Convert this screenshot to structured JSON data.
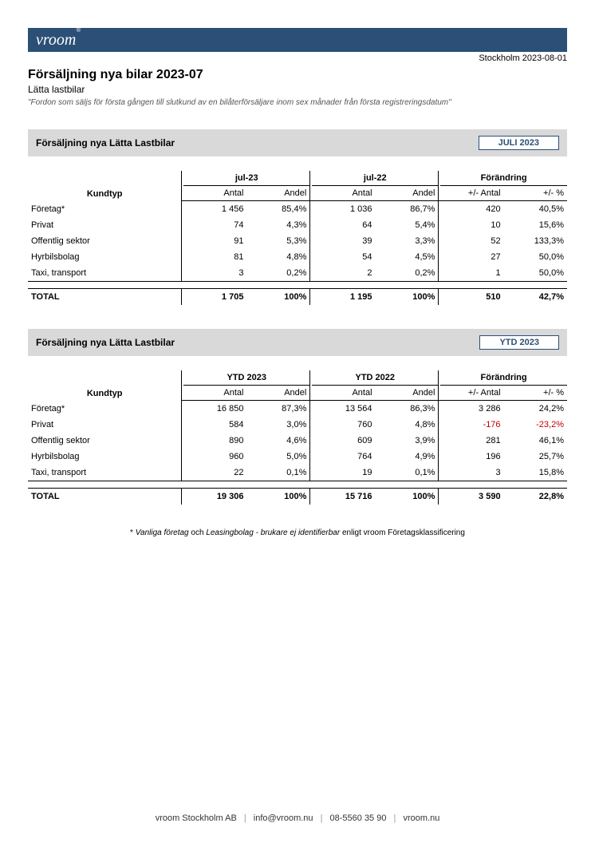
{
  "header": {
    "logo_text": "vroom",
    "logo_mark": "®",
    "date_location": "Stockholm 2023-08-01"
  },
  "report": {
    "title": "Försäljning nya bilar 2023-07",
    "subtitle": "Lätta lastbilar",
    "note": "\"Fordon som säljs för första gången till slutkund av en bilåterförsäljare inom sex månader från första registreringsdatum\""
  },
  "tables": [
    {
      "section_title": "Försäljning nya Lätta Lastbilar",
      "badge": "JULI 2023",
      "kundtyp_label": "Kundtyp",
      "group_headers": [
        "jul-23",
        "jul-22",
        "Förändring"
      ],
      "sub_headers": [
        "Antal",
        "Andel",
        "Antal",
        "Andel",
        "+/- Antal",
        "+/- %"
      ],
      "rows": [
        {
          "label": "Företag*",
          "c1": "1 456",
          "c2": "85,4%",
          "c3": "1 036",
          "c4": "86,7%",
          "c5": "420",
          "c6": "40,5%",
          "neg5": false,
          "neg6": false
        },
        {
          "label": "Privat",
          "c1": "74",
          "c2": "4,3%",
          "c3": "64",
          "c4": "5,4%",
          "c5": "10",
          "c6": "15,6%",
          "neg5": false,
          "neg6": false
        },
        {
          "label": "Offentlig sektor",
          "c1": "91",
          "c2": "5,3%",
          "c3": "39",
          "c4": "3,3%",
          "c5": "52",
          "c6": "133,3%",
          "neg5": false,
          "neg6": false
        },
        {
          "label": "Hyrbilsbolag",
          "c1": "81",
          "c2": "4,8%",
          "c3": "54",
          "c4": "4,5%",
          "c5": "27",
          "c6": "50,0%",
          "neg5": false,
          "neg6": false
        },
        {
          "label": "Taxi, transport",
          "c1": "3",
          "c2": "0,2%",
          "c3": "2",
          "c4": "0,2%",
          "c5": "1",
          "c6": "50,0%",
          "neg5": false,
          "neg6": false
        }
      ],
      "total": {
        "label": "TOTAL",
        "c1": "1 705",
        "c2": "100%",
        "c3": "1 195",
        "c4": "100%",
        "c5": "510",
        "c6": "42,7%"
      }
    },
    {
      "section_title": "Försäljning nya Lätta Lastbilar",
      "badge": "YTD 2023",
      "kundtyp_label": "Kundtyp",
      "group_headers": [
        "YTD 2023",
        "YTD 2022",
        "Förändring"
      ],
      "sub_headers": [
        "Antal",
        "Andel",
        "Antal",
        "Andel",
        "+/- Antal",
        "+/- %"
      ],
      "rows": [
        {
          "label": "Företag*",
          "c1": "16 850",
          "c2": "87,3%",
          "c3": "13 564",
          "c4": "86,3%",
          "c5": "3 286",
          "c6": "24,2%",
          "neg5": false,
          "neg6": false
        },
        {
          "label": "Privat",
          "c1": "584",
          "c2": "3,0%",
          "c3": "760",
          "c4": "4,8%",
          "c5": "-176",
          "c6": "-23,2%",
          "neg5": true,
          "neg6": true
        },
        {
          "label": "Offentlig sektor",
          "c1": "890",
          "c2": "4,6%",
          "c3": "609",
          "c4": "3,9%",
          "c5": "281",
          "c6": "46,1%",
          "neg5": false,
          "neg6": false
        },
        {
          "label": "Hyrbilsbolag",
          "c1": "960",
          "c2": "5,0%",
          "c3": "764",
          "c4": "4,9%",
          "c5": "196",
          "c6": "25,7%",
          "neg5": false,
          "neg6": false
        },
        {
          "label": "Taxi, transport",
          "c1": "22",
          "c2": "0,1%",
          "c3": "19",
          "c4": "0,1%",
          "c5": "3",
          "c6": "15,8%",
          "neg5": false,
          "neg6": false
        }
      ],
      "total": {
        "label": "TOTAL",
        "c1": "19 306",
        "c2": "100%",
        "c3": "15 716",
        "c4": "100%",
        "c5": "3 590",
        "c6": "22,8%"
      }
    }
  ],
  "footnote_parts": {
    "p1": "* ",
    "p2": "Vanliga företag",
    "p3": " och ",
    "p4": "Leasingbolag - brukare ej identifierbar",
    "p5": " enligt vroom Företagsklassificering"
  },
  "footer": {
    "company": "vroom Stockholm AB",
    "email": "info@vroom.nu",
    "phone": "08-5560 35 90",
    "web": "vroom.nu"
  }
}
